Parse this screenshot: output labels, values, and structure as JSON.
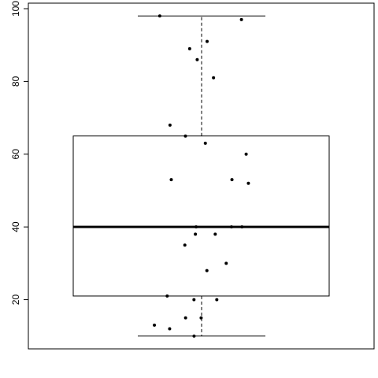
{
  "chart_data": {
    "type": "box",
    "whisker_low": 10,
    "q1": 21,
    "median": 40,
    "q3": 65,
    "whisker_high": 98,
    "points": [
      97,
      98,
      91,
      89,
      86,
      81,
      68,
      65,
      63,
      60,
      53,
      53,
      52,
      40,
      40,
      40,
      38,
      38,
      35,
      30,
      28,
      20,
      20,
      21,
      15,
      15,
      13,
      12,
      10
    ],
    "ylim": [
      6.48,
      101.52
    ],
    "yticks": [
      20,
      40,
      60,
      80,
      100
    ],
    "color": "#000000"
  }
}
